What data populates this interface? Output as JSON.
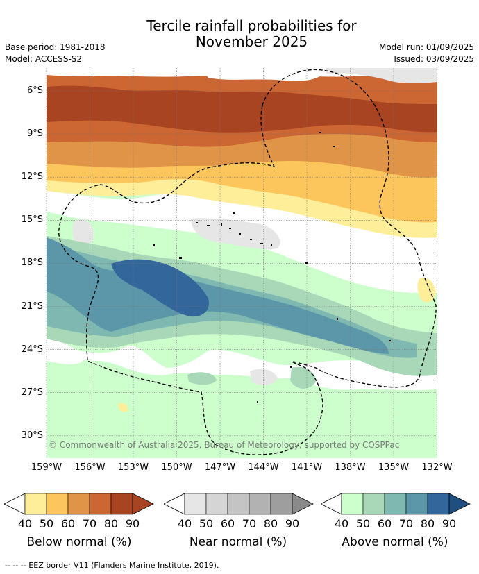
{
  "header": {
    "title_line1": "Tercile rainfall probabilities for",
    "title_line2": "November 2025",
    "base_period": "Base period: 1981-2018",
    "model": "Model: ACCESS-S2",
    "model_run": "Model run: 01/09/2025",
    "issued": "Issued: 03/09/2025"
  },
  "map": {
    "lat_labels": [
      "6°S",
      "9°S",
      "12°S",
      "15°S",
      "18°S",
      "21°S",
      "24°S",
      "27°S",
      "30°S"
    ],
    "lon_labels": [
      "159°W",
      "156°W",
      "153°W",
      "150°W",
      "147°W",
      "144°W",
      "141°W",
      "138°W",
      "135°W",
      "132°W"
    ],
    "lat_values": [
      -6,
      -9,
      -12,
      -15,
      -18,
      -21,
      -24,
      -27,
      -30
    ],
    "lon_values": [
      -159,
      -156,
      -153,
      -150,
      -147,
      -144,
      -141,
      -138,
      -135,
      -132
    ],
    "copyright": "© Commonwealth of Australia 2025, Bureau of Meteorology, supported by COSPPac"
  },
  "legend": {
    "ticks": [
      "40",
      "50",
      "60",
      "70",
      "80",
      "90"
    ],
    "below": {
      "title": "Below normal (%)",
      "colors": [
        "#ffee99",
        "#fcc65c",
        "#e09447",
        "#cc6633",
        "#a84422",
        "#a84422"
      ]
    },
    "near": {
      "title": "Near normal (%)",
      "colors": [
        "#e6e6e6",
        "#d5d5d5",
        "#c4c4c4",
        "#b2b2b2",
        "#9e9e9e",
        "#8a8a8a"
      ]
    },
    "above": {
      "title": "Above normal (%)",
      "colors": [
        "#ccffcc",
        "#a8d8b8",
        "#7fb8b0",
        "#5b97a8",
        "#33669a",
        "#1f4f80"
      ]
    }
  },
  "footnote": "-- -- -- EEZ border V11 (Flanders Marine Institute, 2019)."
}
